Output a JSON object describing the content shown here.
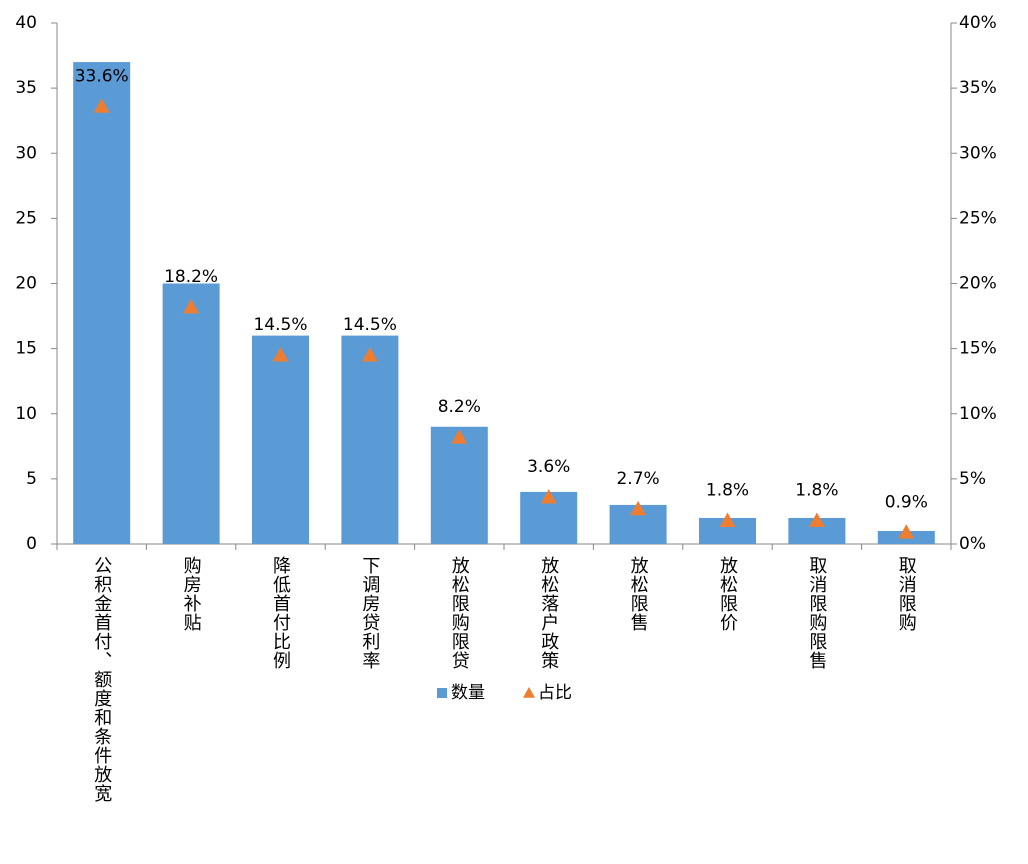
{
  "chart_data": {
    "type": "bar",
    "categories": [
      "公积金首付、额度和条件放宽",
      "购房补贴",
      "降低首付比例",
      "下调房贷利率",
      "放松限购限贷",
      "放松落户政策",
      "放松限售",
      "放松限价",
      "取消限购限售",
      "取消限购"
    ],
    "series": [
      {
        "name": "数量",
        "color": "#5b9bd5",
        "values": [
          37,
          20,
          16,
          16,
          9,
          4,
          3,
          2,
          2,
          1
        ]
      },
      {
        "name": "占比",
        "color": "#ed7d31",
        "axis": "y2",
        "marker": "triangle",
        "values": [
          33.6,
          18.2,
          14.5,
          14.5,
          8.2,
          3.6,
          2.7,
          1.8,
          1.8,
          0.9
        ],
        "value_labels": [
          "33.6%",
          "18.2%",
          "14.5%",
          "14.5%",
          "8.2%",
          "3.6%",
          "2.7%",
          "1.8%",
          "1.8%",
          "0.9%"
        ]
      }
    ],
    "ylim": [
      0,
      40
    ],
    "yticks": [
      0,
      5,
      10,
      15,
      20,
      25,
      30,
      35,
      40
    ],
    "y2lim": [
      0,
      40
    ],
    "y2ticks": [
      {
        "value": 0,
        "label": "0%"
      },
      {
        "value": 5,
        "label": "5%"
      },
      {
        "value": 10,
        "label": "10%"
      },
      {
        "value": 15,
        "label": "15%"
      },
      {
        "value": 20,
        "label": "20%"
      },
      {
        "value": 25,
        "label": "25%"
      },
      {
        "value": 30,
        "label": "30%"
      },
      {
        "value": 35,
        "label": "35%"
      },
      {
        "value": 40,
        "label": "40%"
      }
    ],
    "legend": "bottom"
  }
}
